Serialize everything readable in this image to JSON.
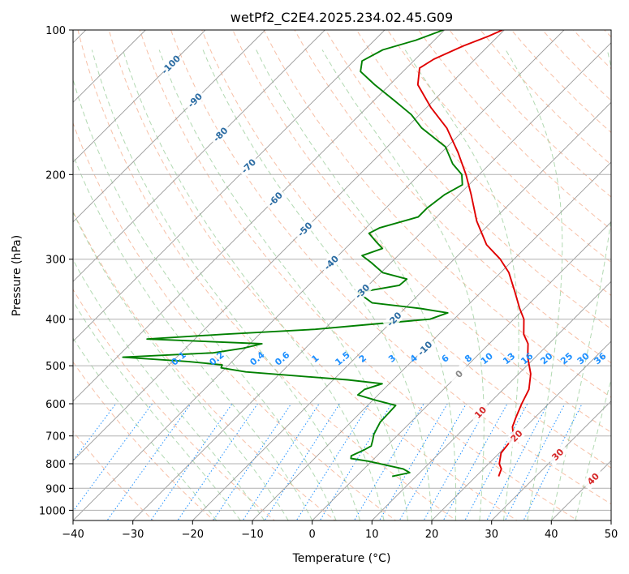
{
  "chart_data": {
    "type": "line",
    "subtype": "skew-t log-p",
    "title": "wetPf2_C2E4.2025.234.02.45.G09",
    "xlabel": "Temperature (°C)",
    "ylabel": "Pressure (hPa)",
    "xlim": [
      -40,
      50
    ],
    "ylim": [
      1050,
      100
    ],
    "x_ticks": [
      -40,
      -30,
      -20,
      -10,
      0,
      10,
      20,
      30,
      40,
      50
    ],
    "x_tick_labels": [
      "−40",
      "−30",
      "−20",
      "−10",
      "0",
      "10",
      "20",
      "30",
      "40",
      "50"
    ],
    "y_ticks": [
      1000,
      900,
      800,
      700,
      600,
      500,
      400,
      300,
      200,
      100
    ],
    "y_tick_labels": [
      "1000",
      "900",
      "800",
      "700",
      "600",
      "500",
      "400",
      "300",
      "200",
      "100"
    ],
    "grid": true,
    "colors": {
      "temperature": "#e00000",
      "dewpoint": "#008000",
      "isotherm": "#999999",
      "dry_adiabat": "#f4a582",
      "moist_adiabat": "#9fd09f",
      "mixing_ratio": "#1e90ff",
      "isotherm_label": "#2b6ca3",
      "adiabat_label": "#d62728"
    },
    "series": [
      {
        "name": "Temperature",
        "points": [
          {
            "p": 850,
            "t": 23.8
          },
          {
            "p": 820,
            "t": 23.0
          },
          {
            "p": 800,
            "t": 21.8
          },
          {
            "p": 760,
            "t": 20.3
          },
          {
            "p": 720,
            "t": 19.9
          },
          {
            "p": 700,
            "t": 19.5
          },
          {
            "p": 670,
            "t": 17.8
          },
          {
            "p": 640,
            "t": 16.8
          },
          {
            "p": 600,
            "t": 15.5
          },
          {
            "p": 560,
            "t": 14.3
          },
          {
            "p": 520,
            "t": 12.0
          },
          {
            "p": 480,
            "t": 8.7
          },
          {
            "p": 450,
            "t": 6.5
          },
          {
            "p": 430,
            "t": 4.2
          },
          {
            "p": 400,
            "t": 1.7
          },
          {
            "p": 380,
            "t": -0.8
          },
          {
            "p": 350,
            "t": -4.5
          },
          {
            "p": 320,
            "t": -8.6
          },
          {
            "p": 300,
            "t": -12.3
          },
          {
            "p": 280,
            "t": -17.0
          },
          {
            "p": 250,
            "t": -22.6
          },
          {
            "p": 220,
            "t": -28.0
          },
          {
            "p": 200,
            "t": -32.2
          },
          {
            "p": 180,
            "t": -37.2
          },
          {
            "p": 160,
            "t": -43.2
          },
          {
            "p": 145,
            "t": -49.3
          },
          {
            "p": 130,
            "t": -55.3
          },
          {
            "p": 120,
            "t": -57.8
          },
          {
            "p": 115,
            "t": -56.9
          },
          {
            "p": 108,
            "t": -54.2
          },
          {
            "p": 103,
            "t": -51.6
          },
          {
            "p": 100,
            "t": -50.3
          }
        ]
      },
      {
        "name": "Dewpoint",
        "points": [
          {
            "p": 850,
            "t": 6.0
          },
          {
            "p": 835,
            "t": 8.3
          },
          {
            "p": 820,
            "t": 6.6
          },
          {
            "p": 805,
            "t": 3.0
          },
          {
            "p": 790,
            "t": -0.6
          },
          {
            "p": 780,
            "t": -3.9
          },
          {
            "p": 770,
            "t": -4.3
          },
          {
            "p": 750,
            "t": -3.2
          },
          {
            "p": 735,
            "t": -2.6
          },
          {
            "p": 715,
            "t": -3.3
          },
          {
            "p": 695,
            "t": -4.1
          },
          {
            "p": 675,
            "t": -4.6
          },
          {
            "p": 655,
            "t": -5.1
          },
          {
            "p": 630,
            "t": -5.2
          },
          {
            "p": 605,
            "t": -5.3
          },
          {
            "p": 590,
            "t": -9.5
          },
          {
            "p": 575,
            "t": -13.4
          },
          {
            "p": 560,
            "t": -13.2
          },
          {
            "p": 545,
            "t": -11.2
          },
          {
            "p": 535,
            "t": -17.6
          },
          {
            "p": 525,
            "t": -26.7
          },
          {
            "p": 515,
            "t": -36.0
          },
          {
            "p": 505,
            "t": -40.8
          },
          {
            "p": 498,
            "t": -41.1
          },
          {
            "p": 490,
            "t": -47.4
          },
          {
            "p": 480,
            "t": -59.0
          },
          {
            "p": 470,
            "t": -44.6
          },
          {
            "p": 460,
            "t": -40.4
          },
          {
            "p": 450,
            "t": -38.0
          },
          {
            "p": 440,
            "t": -58.0
          },
          {
            "p": 430,
            "t": -46.0
          },
          {
            "p": 420,
            "t": -31.5
          },
          {
            "p": 410,
            "t": -23.0
          },
          {
            "p": 400,
            "t": -14.0
          },
          {
            "p": 388,
            "t": -12.1
          },
          {
            "p": 380,
            "t": -17.4
          },
          {
            "p": 370,
            "t": -26.4
          },
          {
            "p": 352,
            "t": -30.5
          },
          {
            "p": 340,
            "t": -24.8
          },
          {
            "p": 330,
            "t": -24.6
          },
          {
            "p": 320,
            "t": -29.7
          },
          {
            "p": 305,
            "t": -33.3
          },
          {
            "p": 295,
            "t": -36.0
          },
          {
            "p": 285,
            "t": -33.8
          },
          {
            "p": 275,
            "t": -36.2
          },
          {
            "p": 265,
            "t": -38.6
          },
          {
            "p": 258,
            "t": -37.7
          },
          {
            "p": 245,
            "t": -33.1
          },
          {
            "p": 235,
            "t": -33.1
          },
          {
            "p": 220,
            "t": -32.4
          },
          {
            "p": 210,
            "t": -31.1
          },
          {
            "p": 200,
            "t": -32.9
          },
          {
            "p": 190,
            "t": -36.2
          },
          {
            "p": 175,
            "t": -40.3
          },
          {
            "p": 160,
            "t": -47.4
          },
          {
            "p": 150,
            "t": -51.4
          },
          {
            "p": 140,
            "t": -56.7
          },
          {
            "p": 130,
            "t": -62.5
          },
          {
            "p": 122,
            "t": -67.1
          },
          {
            "p": 116,
            "t": -68.6
          },
          {
            "p": 110,
            "t": -67.0
          },
          {
            "p": 105,
            "t": -63.1
          },
          {
            "p": 100,
            "t": -60.2
          }
        ]
      }
    ],
    "isotherm_labels": [
      "-100",
      "-90",
      "-80",
      "-70",
      "-60",
      "-50",
      "-40",
      "-30",
      "-20",
      "-10",
      "0",
      "10",
      "20",
      "30",
      "40"
    ],
    "isotherm_label_values": [
      -100,
      -90,
      -80,
      -70,
      -60,
      -50,
      -40,
      -30,
      -20,
      -10,
      0,
      10,
      20,
      30,
      40
    ],
    "mixing_ratio_labels": [
      "0.1",
      "0.2",
      "0.4",
      "0.6",
      "1",
      "1.5",
      "2",
      "3",
      "4",
      "6",
      "8",
      "10",
      "13",
      "16",
      "20",
      "25",
      "30",
      "36"
    ],
    "mixing_ratio_values": [
      0.1,
      0.2,
      0.4,
      0.6,
      1,
      1.5,
      2,
      3,
      4,
      6,
      8,
      10,
      13,
      16,
      20,
      25,
      30,
      36
    ],
    "mixing_ratio_label_pressure": 500
  }
}
